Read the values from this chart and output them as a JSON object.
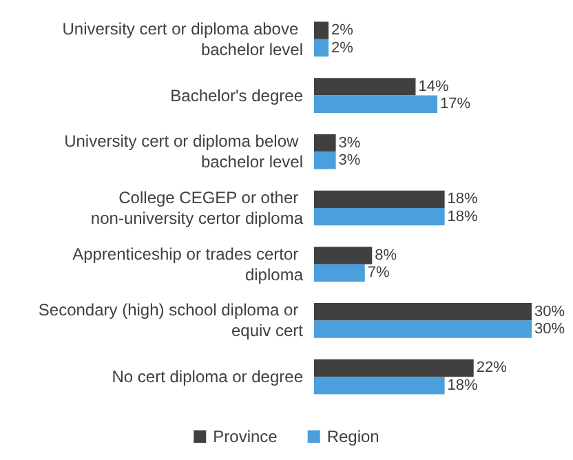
{
  "chart_data": {
    "type": "bar",
    "orientation": "horizontal",
    "categories": [
      "University cert or diploma above bachelor level",
      "Bachelor's degree",
      "University cert or diploma below bachelor level",
      "College CEGEP or other non-university certor diploma",
      "Apprenticeship or trades certor diploma",
      "Secondary (high) school diploma or equiv cert",
      "No cert diploma or degree"
    ],
    "series": [
      {
        "name": "Province",
        "color": "#404040",
        "values": [
          2,
          14,
          3,
          18,
          8,
          30,
          22
        ],
        "value_labels": [
          "2%",
          "14%",
          "3%",
          "18%",
          "8%",
          "30%",
          "22%"
        ]
      },
      {
        "name": "Region",
        "color": "#4a9fdc",
        "values": [
          2,
          17,
          3,
          18,
          7,
          30,
          18
        ],
        "value_labels": [
          "2%",
          "17%",
          "3%",
          "18%",
          "7%",
          "30%",
          "18%"
        ]
      }
    ],
    "legend": "bottom"
  }
}
